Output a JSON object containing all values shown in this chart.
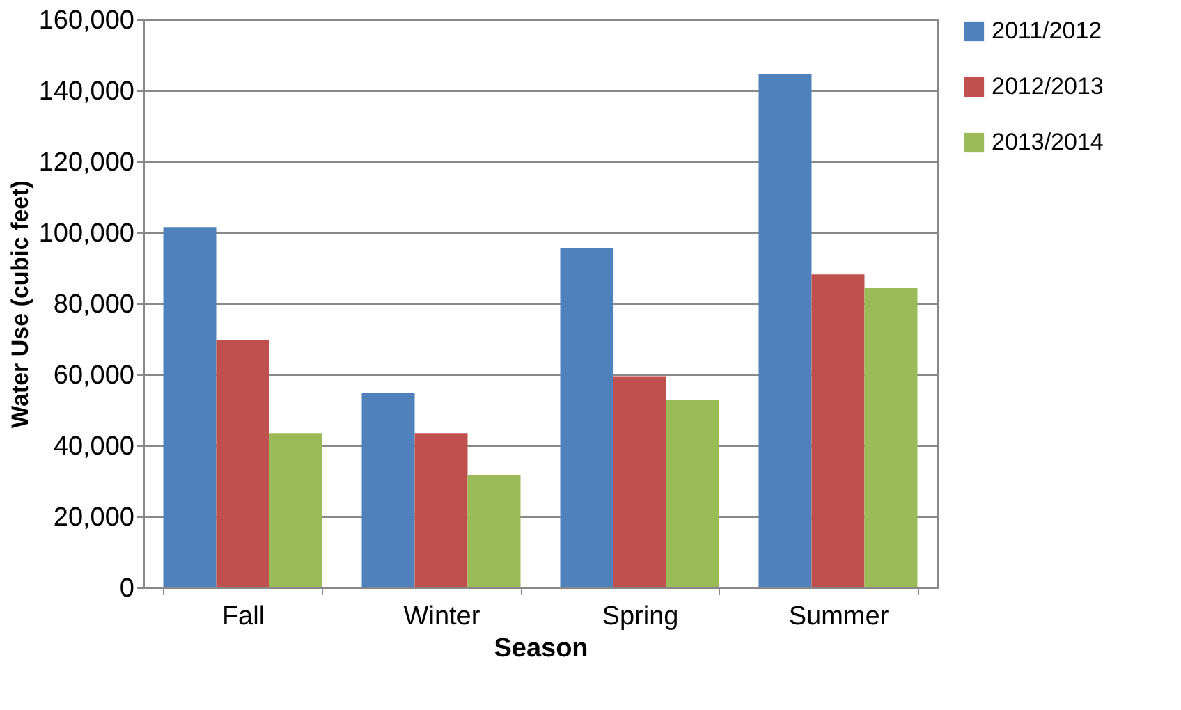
{
  "chart_data": {
    "type": "bar",
    "xlabel": "Season",
    "ylabel": "Water Use (cubic feet)",
    "categories": [
      "Fall",
      "Winter",
      "Spring",
      "Summer"
    ],
    "series": [
      {
        "name": "2011/2012",
        "color": "#4f81bd",
        "values": [
          101500,
          54800,
          95700,
          144700
        ]
      },
      {
        "name": "2012/2013",
        "color": "#c0504d",
        "values": [
          69600,
          43500,
          59500,
          88200
        ]
      },
      {
        "name": "2013/2014",
        "color": "#9bbb59",
        "values": [
          43500,
          31700,
          52800,
          84300
        ]
      }
    ],
    "ylim": [
      0,
      160000
    ],
    "yticks": [
      0,
      {
        "value": 20000,
        "label": "20,000"
      },
      {
        "value": 40000,
        "label": "40,000"
      },
      {
        "value": 60000,
        "label": "60,000"
      },
      {
        "value": 80000,
        "label": "80,000"
      },
      {
        "value": 100000,
        "label": "100,000"
      },
      {
        "value": 120000,
        "label": "120,000"
      },
      {
        "value": 140000,
        "label": "140,000"
      },
      {
        "value": 160000,
        "label": "160,000"
      }
    ],
    "grid": "y",
    "legend": "right"
  }
}
